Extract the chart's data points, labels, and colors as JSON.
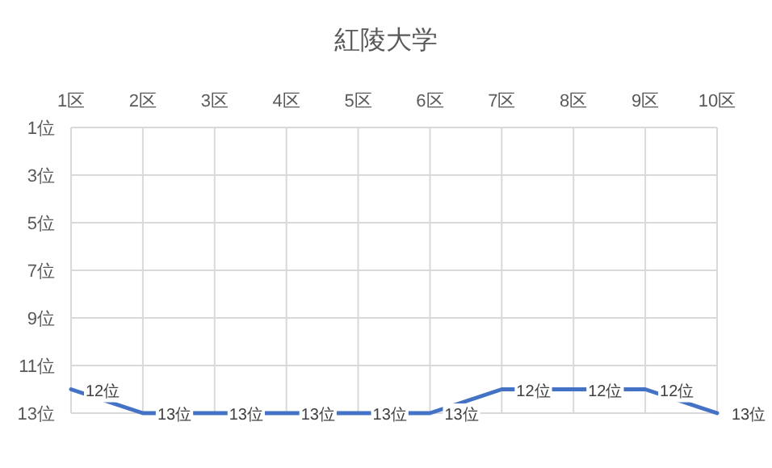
{
  "chart_data": {
    "type": "line",
    "title": "紅陵大学",
    "categories": [
      "1区",
      "2区",
      "3区",
      "4区",
      "5区",
      "6区",
      "7区",
      "8区",
      "9区",
      "10区"
    ],
    "series": [
      {
        "color": "#4472c4",
        "values": [
          12,
          13,
          13,
          13,
          13,
          13,
          12,
          12,
          12,
          13
        ],
        "value_labels": [
          "12位",
          "13位",
          "13位",
          "13位",
          "13位",
          "13位",
          "12位",
          "12位",
          "12位",
          "13位"
        ]
      }
    ],
    "ylim": [
      13,
      1
    ],
    "yticks": [
      {
        "value": 1,
        "label": "1位"
      },
      {
        "value": 3,
        "label": "3位"
      },
      {
        "value": 5,
        "label": "5位"
      },
      {
        "value": 7,
        "label": "7位"
      },
      {
        "value": 9,
        "label": "9位"
      },
      {
        "value": 11,
        "label": "11位"
      },
      {
        "value": 13,
        "label": "13位"
      }
    ],
    "grid": true
  }
}
